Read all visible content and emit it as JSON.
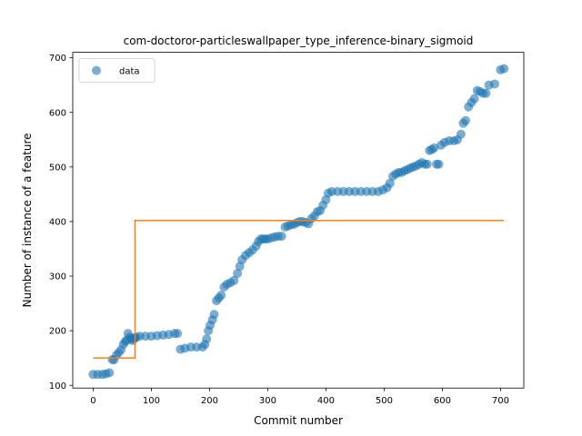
{
  "chart_data": {
    "type": "scatter",
    "title": "com-doctoror-particleswallpaper_type_inference-binary_sigmoid",
    "xlabel": "Commit number",
    "ylabel": "Number of instance of a feature",
    "xlim": [
      -35,
      740
    ],
    "ylim": [
      95,
      710
    ],
    "xticks": [
      0,
      100,
      200,
      300,
      400,
      500,
      600,
      700
    ],
    "yticks": [
      100,
      200,
      300,
      400,
      500,
      600,
      700
    ],
    "legend": {
      "entries": [
        "data"
      ],
      "placement": "upper left"
    },
    "colors": {
      "data": "#1f77b4",
      "fit": "#ff7f0e"
    },
    "series": [
      {
        "name": "data",
        "kind": "scatter",
        "x": [
          0,
          8,
          16,
          22,
          28,
          33,
          36,
          40,
          44,
          48,
          52,
          55,
          58,
          60,
          63,
          66,
          68,
          70,
          72,
          74,
          80,
          90,
          100,
          110,
          120,
          130,
          140,
          145,
          150,
          158,
          168,
          178,
          188,
          192,
          195,
          198,
          201,
          205,
          208,
          212,
          216,
          220,
          225,
          230,
          236,
          242,
          248,
          252,
          256,
          262,
          268,
          274,
          280,
          284,
          288,
          292,
          296,
          300,
          306,
          312,
          318,
          324,
          330,
          335,
          340,
          345,
          350,
          355,
          360,
          365,
          370,
          375,
          380,
          385,
          390,
          395,
          400,
          404,
          410,
          420,
          430,
          440,
          450,
          460,
          470,
          480,
          490,
          498,
          505,
          510,
          515,
          520,
          525,
          530,
          535,
          540,
          545,
          550,
          555,
          560,
          565,
          570,
          574,
          578,
          582,
          586,
          590,
          594,
          598,
          604,
          612,
          620,
          626,
          632,
          636,
          640,
          645,
          650,
          655,
          660,
          665,
          670,
          675,
          680,
          690,
          700,
          706
        ],
        "y": [
          120,
          120,
          120,
          121,
          123,
          147,
          147,
          155,
          160,
          165,
          175,
          180,
          183,
          195,
          188,
          185,
          182,
          186,
          187,
          188,
          190,
          190,
          190,
          191,
          192,
          193,
          195,
          195,
          166,
          168,
          170,
          170,
          170,
          175,
          185,
          200,
          210,
          220,
          230,
          255,
          260,
          265,
          280,
          285,
          288,
          292,
          305,
          318,
          330,
          338,
          343,
          348,
          355,
          363,
          368,
          368,
          368,
          368,
          370,
          372,
          373,
          373,
          390,
          392,
          394,
          395,
          398,
          400,
          400,
          398,
          396,
          405,
          410,
          418,
          420,
          430,
          440,
          452,
          455,
          455,
          455,
          455,
          455,
          455,
          455,
          455,
          455,
          458,
          462,
          470,
          483,
          487,
          490,
          490,
          493,
          495,
          498,
          500,
          502,
          505,
          508,
          505,
          505,
          530,
          532,
          535,
          505,
          505,
          540,
          545,
          548,
          548,
          550,
          560,
          580,
          585,
          610,
          618,
          625,
          640,
          638,
          635,
          635,
          650,
          652,
          678,
          680
        ]
      },
      {
        "name": "",
        "kind": "step-line",
        "x": [
          0,
          72,
          72,
          706
        ],
        "y": [
          150,
          150,
          402,
          402
        ]
      }
    ]
  }
}
